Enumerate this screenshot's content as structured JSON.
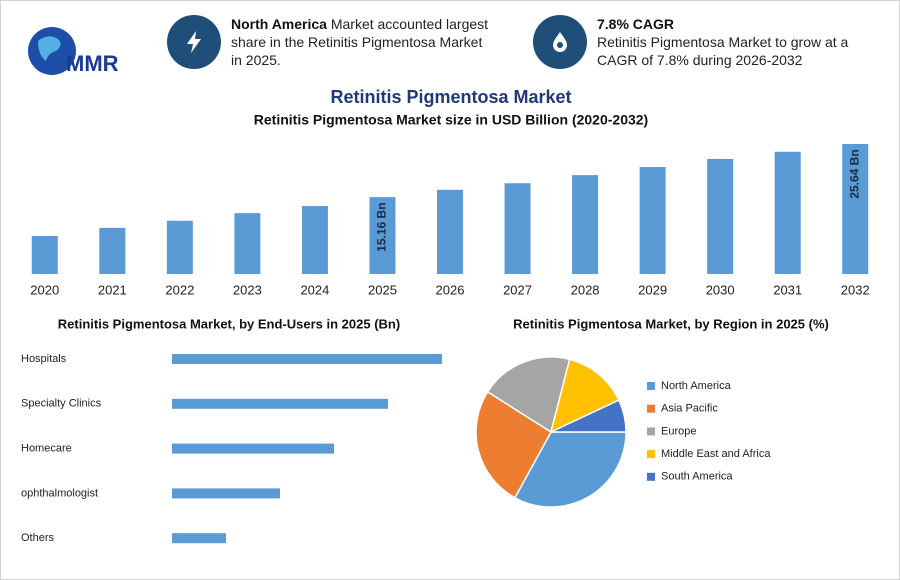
{
  "header": {
    "logo": "MMR",
    "cards": [
      {
        "title": "North America",
        "text": "Market accounted largest share in the Retinitis Pigmentosa Market in 2025."
      },
      {
        "title": "7.8% CAGR",
        "text": "Retinitis Pigmentosa Market to grow at a CAGR of 7.8% during 2026-2032"
      }
    ],
    "title": "Retinitis Pigmentosa Market"
  },
  "chart_data": [
    {
      "type": "bar",
      "title": "Retinitis Pigmentosa Market size in USD Billion (2020-2032)",
      "categories": [
        "2020",
        "2021",
        "2022",
        "2023",
        "2024",
        "2025",
        "2026",
        "2027",
        "2028",
        "2029",
        "2030",
        "2031",
        "2032"
      ],
      "values": [
        7.5,
        9.1,
        10.5,
        12.0,
        13.4,
        15.16,
        16.6,
        17.9,
        19.5,
        21.1,
        22.7,
        24.1,
        25.64
      ],
      "value_labels": [
        null,
        null,
        null,
        null,
        null,
        "15.16 Bn",
        null,
        null,
        null,
        null,
        null,
        null,
        "25.64 Bn"
      ],
      "color": "#5b9bd5"
    },
    {
      "type": "hbar",
      "title": "Retinitis Pigmentosa Market, by End-Users in 2025 (Bn)",
      "categories": [
        "Hospitals",
        "Specialty Clinics",
        "Homecare",
        "ophthalmologist",
        "Others"
      ],
      "values": [
        5.0,
        4.0,
        3.0,
        2.0,
        1.0
      ],
      "color": "#5b9bd5"
    },
    {
      "type": "pie",
      "title": "Retinitis Pigmentosa Market, by Region in 2025 (%)",
      "categories": [
        "North America",
        "Asia Pacific",
        "Europe",
        "Middle East and Africa",
        "South America"
      ],
      "values": [
        33,
        26,
        20,
        14,
        7
      ],
      "colors": [
        "#5b9bd5",
        "#ed7d31",
        "#a5a5a5",
        "#ffc000",
        "#4472c4"
      ]
    }
  ]
}
